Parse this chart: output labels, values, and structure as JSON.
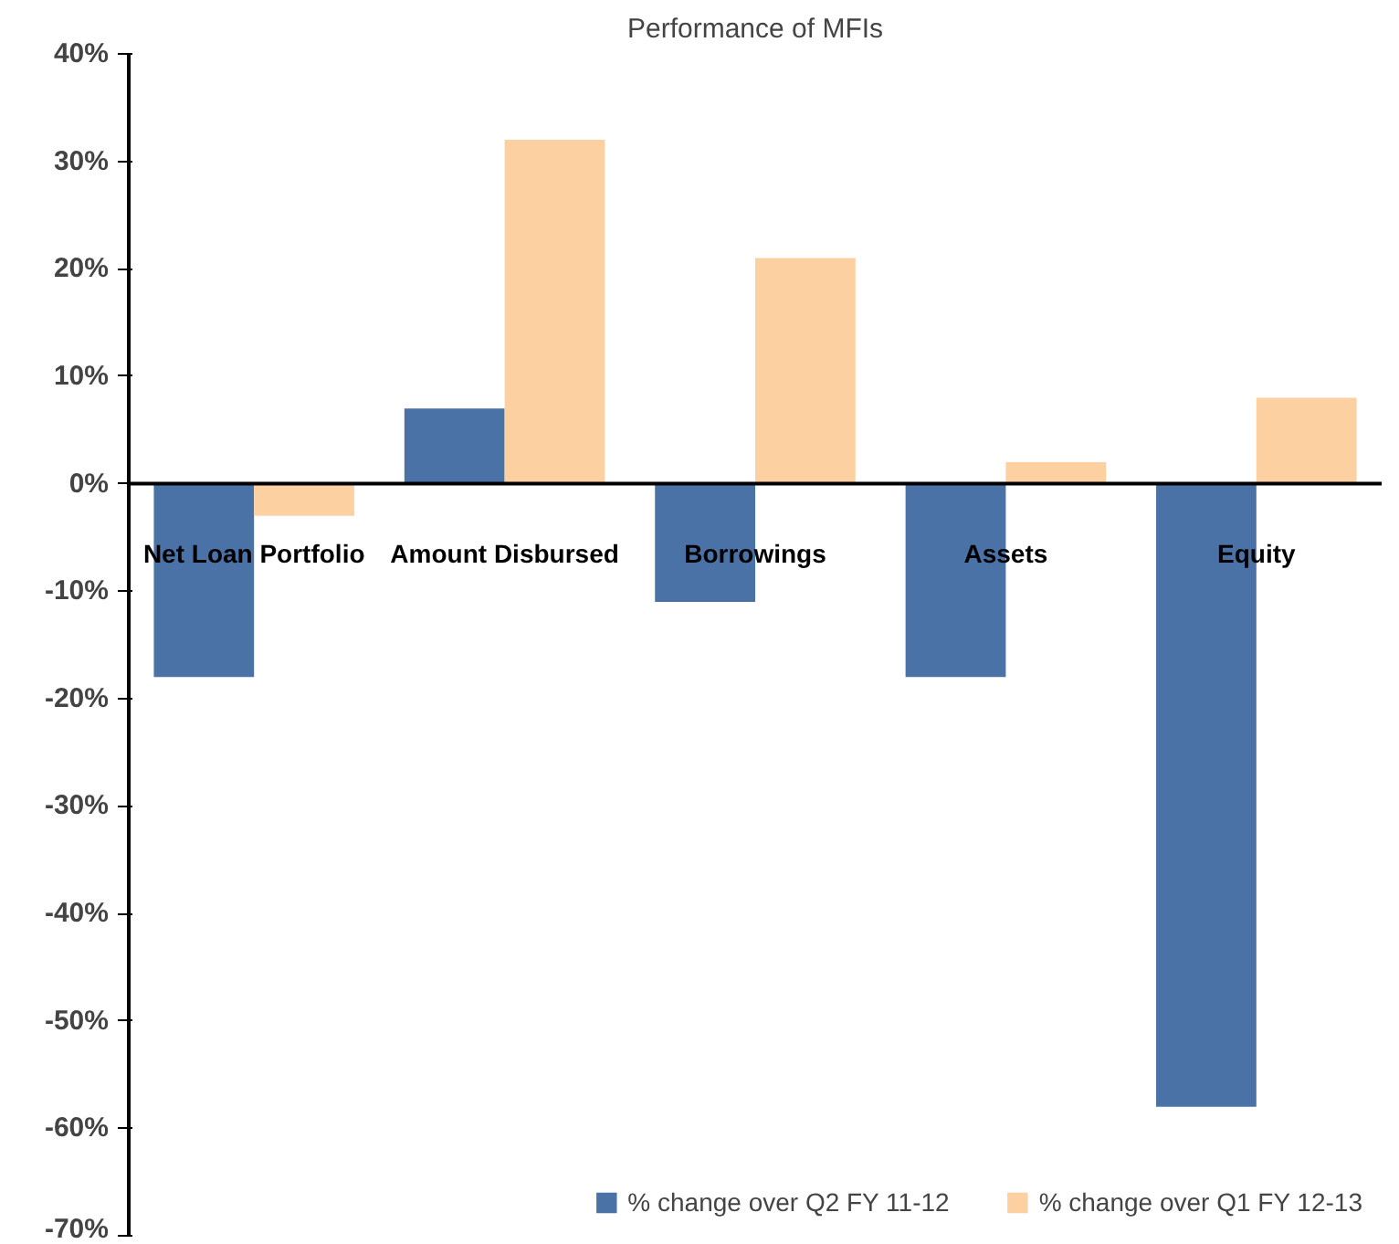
{
  "chart_data": {
    "type": "bar",
    "title": "Performance of MFIs",
    "categories": [
      "Net Loan Portfolio",
      "Amount Disbursed",
      "Borrowings",
      "Assets",
      "Equity"
    ],
    "series": [
      {
        "name": "% change over Q2 FY 11-12",
        "color": "#4a72a6",
        "values": [
          -18,
          7,
          -11,
          -18,
          -58
        ]
      },
      {
        "name": "% change over Q1 FY 12-13",
        "color": "#fdd0a2",
        "values": [
          -3,
          32,
          21,
          2,
          8
        ]
      }
    ],
    "ylim": [
      -70,
      40
    ],
    "yticks": [
      {
        "value": -70,
        "label": "-70%"
      },
      {
        "value": -60,
        "label": "-60%"
      },
      {
        "value": -50,
        "label": "-50%"
      },
      {
        "value": -40,
        "label": "-40%"
      },
      {
        "value": -30,
        "label": "-30%"
      },
      {
        "value": -20,
        "label": "-20%"
      },
      {
        "value": -10,
        "label": "-10%"
      },
      {
        "value": 0,
        "label": "0%"
      },
      {
        "value": 10,
        "label": "10%"
      },
      {
        "value": 20,
        "label": "20%"
      },
      {
        "value": 30,
        "label": "30%"
      },
      {
        "value": 40,
        "label": "40%"
      }
    ],
    "grid": false,
    "legend": "bottom"
  }
}
